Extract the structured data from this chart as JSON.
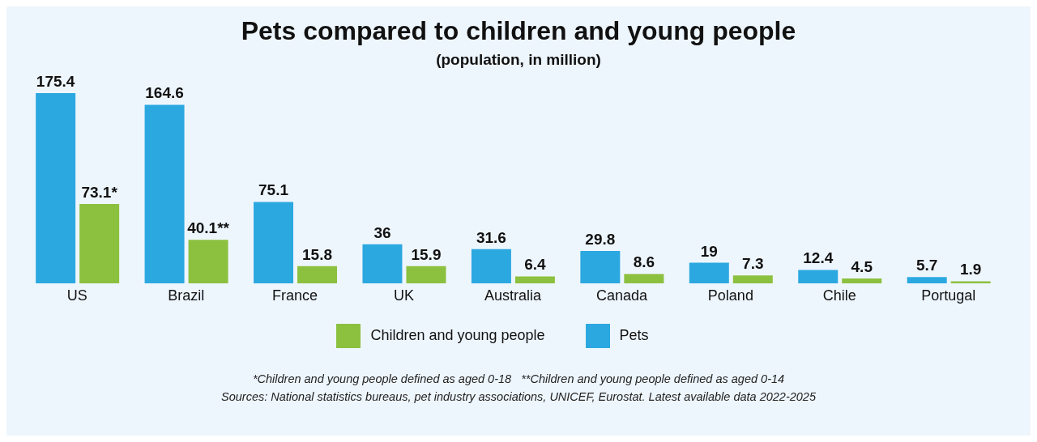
{
  "chart_data": {
    "type": "bar",
    "title": "Pets compared to children and young people",
    "subtitle": "(population, in million)",
    "categories": [
      "US",
      "Brazil",
      "France",
      "UK",
      "Australia",
      "Canada",
      "Poland",
      "Chile",
      "Portugal"
    ],
    "series": [
      {
        "name": "Pets",
        "color": "#2ba8e0",
        "values": [
          175.4,
          164.6,
          75.1,
          36,
          31.6,
          29.8,
          19,
          12.4,
          5.7
        ],
        "value_labels": [
          "175.4",
          "164.6",
          "75.1",
          "36",
          "31.6",
          "29.8",
          "19",
          "12.4",
          "5.7"
        ]
      },
      {
        "name": "Children and young people",
        "color": "#8cc03f",
        "values": [
          73.1,
          40.1,
          15.8,
          15.9,
          6.4,
          8.6,
          7.3,
          4.5,
          1.9
        ],
        "value_labels": [
          "73.1*",
          "40.1**",
          "15.8",
          "15.9",
          "6.4",
          "8.6",
          "7.3",
          "4.5",
          "1.9"
        ]
      }
    ],
    "legend": "bottom",
    "grid": false,
    "annotations": [
      "*Children and young people defined as aged 0-18   **Children and young people defined as aged 0-14",
      "Sources: National statistics bureaus, pet industry associations, UNICEF, Eurostat. Latest available data 2022-2025"
    ]
  }
}
